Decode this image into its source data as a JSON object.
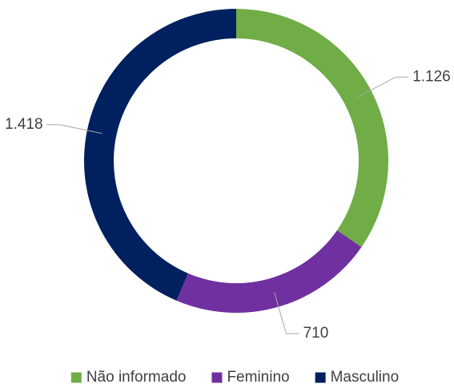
{
  "chart_data": {
    "type": "donut",
    "categories": [
      "Não informado",
      "Feminino",
      "Masculino"
    ],
    "values": [
      1126,
      710,
      1418
    ],
    "value_labels": [
      "1.126",
      "710",
      "1.418"
    ],
    "colors": [
      "#70ad47",
      "#7030a0",
      "#002060"
    ],
    "legend": "bottom"
  }
}
